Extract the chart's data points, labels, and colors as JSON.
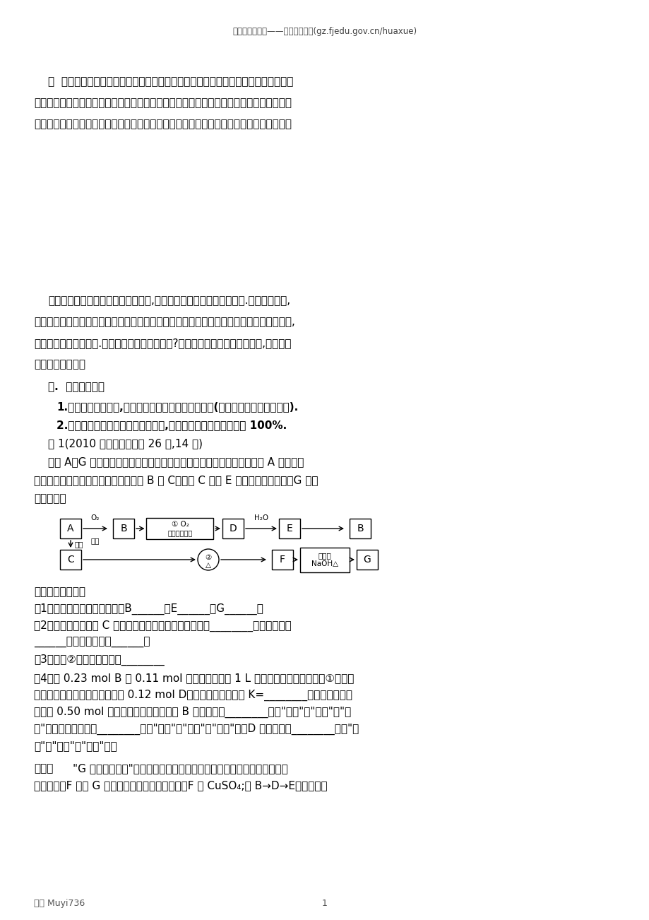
{
  "header": "福建高中新课程——化学试题研究(gz.fjedu.gov.cn/huaxue)",
  "abstract_line1": "摘  要：西方质询制度与我国的质询制度存在着很多不同，最大的区别在于：西方的立",
  "abstract_line2": "法机关只能质询政府，我国法律规定人大不但可以质询政府，也可以质询法院。然而这一规",
  "abstract_line3": "定与现行宪法排除了全国人大对最高人民法院质询的规定相违背。通过比较历次立法的变化",
  "intro_line1": "化学平衡理论是中学化学的重要理论,也是高考试题中的的热点与难点.在高考试题中,",
  "intro_line2": "由于化学平衡试题较好地考察了同学们的思维想像能力、逻辑推理能力、以及化学计算能力,",
  "intro_line3": "从而得到命题者的青睐.如何解答好这部分试题呢?我认为在掌握基础知识的同时,要学会运",
  "intro_line4": "用三大解题策略。",
  "section1_title": "一.  极限解题策略",
  "point1": "1.在达到化学平衡时,任一物质的质量或浓度都大于零(即任意物质的量极限为零).",
  "point2": "2.可逆反应的最大极限为不可逆反应,即反应物的转化率的极限为 100%.",
  "example1_head": "例 1(2010 年高考新课程卷 26 题,14 分)",
  "example1_desc1": "物质 A～G 有下图所示转化关系（部分反应物、生成物没有列出）。其中 A 为某金属",
  "example1_desc2": "矿的主要成分，经过一系列反应可得到 B 和 C。单质 C 可与 E 的浓溶液发生反应，G 为砖",
  "example1_desc3": "红色沉淀。",
  "questions_head": "请回答下列问题：",
  "q1": "（1）写出下列物质的化学式：B______、E______、G______；",
  "q2": "（2）利用电解可提纯 C 物质，在该电解反应中阳极物质是________，阴极物质是",
  "q2b": "______，电解质溶液是______；",
  "q3": "（3）反应②的化学方程式是________",
  "q4_line1": "（4）将 0.23 mol B 和 0.11 mol 氧气放入容积为 1 L 的密闭容器中，发生反应①，在一",
  "q4_line2": "定温度下，反应达到平衡，得到 0.12 mol D，则反应的平衡常数 K=________。若温度不变，",
  "q4_line3": "再加入 0.50 mol 氧气后重新达到平衡，则 B 的平衡浓度________（填\"增大\"、\"不变\"或\"减",
  "q4_line4": "小\"）、氧气的转化率________（填\"升高\"、\"不变\"或\"降低\"）、D 的体积分数________（填\"增",
  "q4_line5": "大\"、\"不变\"或\"减小\"）。",
  "analysis_head": "解析：",
  "analysis_line1": "\"G 为砖红色沉淀\"是本题的突破口，因此本题可以用逆向推断的方法做。",
  "analysis_line2": "不难看出，F 生成 G 的反应是醛基的检验，所以，F 为 CuSO₄;从 B→D→E，可推断为",
  "footer": "编辑 Muyi736",
  "page_num": "1",
  "bg_color": "#ffffff",
  "text_color": "#000000",
  "header_color": "#404040"
}
